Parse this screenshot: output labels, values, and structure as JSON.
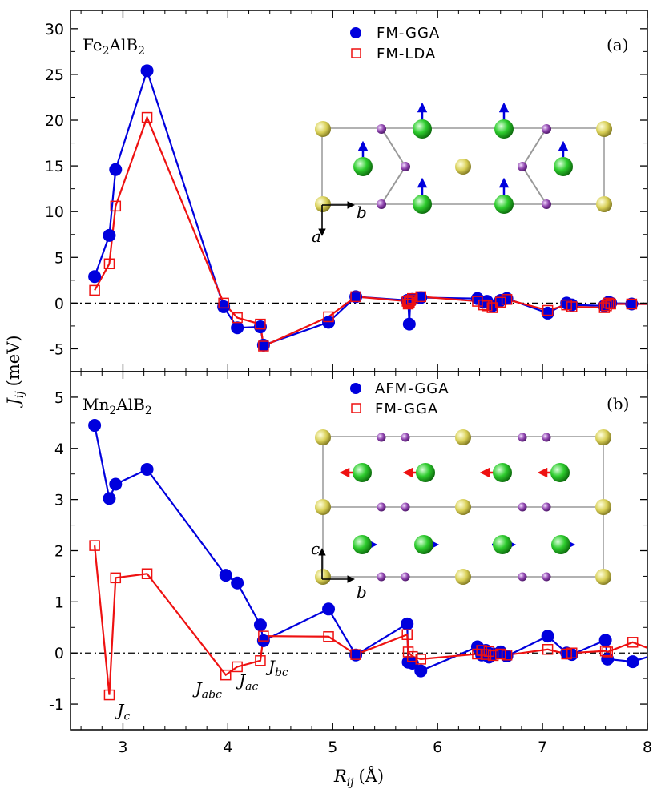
{
  "chart_data": [
    {
      "type": "line",
      "panel": "(a)",
      "compound": "Fe₂AlB₂",
      "xlim": [
        2.5,
        8
      ],
      "ylim": [
        -7.5,
        32
      ],
      "yticks": [
        -5,
        0,
        5,
        10,
        15,
        20,
        25,
        30
      ],
      "series": [
        {
          "name": "FM-GGA",
          "color": "#0000dd",
          "marker": "circle",
          "x": [
            2.73,
            2.87,
            2.93,
            3.23,
            3.96,
            4.09,
            4.31,
            4.34,
            4.96,
            5.22,
            5.71,
            5.72,
            5.73,
            5.74,
            5.76,
            5.84,
            6.38,
            6.44,
            6.47,
            6.52,
            6.6,
            6.66,
            7.05,
            7.23,
            7.28,
            7.59,
            7.61,
            7.63,
            7.65,
            7.85,
            8.0
          ],
          "y": [
            2.9,
            7.4,
            14.6,
            25.4,
            -0.4,
            -2.7,
            -2.6,
            -4.6,
            -2.1,
            0.7,
            0.3,
            0.1,
            -2.3,
            0.2,
            0.4,
            0.6,
            0.5,
            0.1,
            0.2,
            -0.3,
            0.3,
            0.5,
            -1.1,
            0.0,
            -0.2,
            -0.3,
            -0.1,
            0.1,
            0.0,
            -0.1,
            -0.1
          ]
        },
        {
          "name": "FM-LDA",
          "color": "#ee1111",
          "marker": "open-square",
          "x": [
            2.73,
            2.87,
            2.93,
            3.23,
            3.96,
            4.09,
            4.31,
            4.34,
            4.96,
            5.22,
            5.71,
            5.72,
            5.73,
            5.74,
            5.76,
            5.84,
            6.38,
            6.44,
            6.47,
            6.52,
            6.6,
            6.66,
            7.05,
            7.23,
            7.28,
            7.59,
            7.61,
            7.63,
            7.65,
            7.85,
            8.0
          ],
          "y": [
            1.4,
            4.3,
            10.6,
            20.3,
            0.0,
            -1.6,
            -2.3,
            -4.7,
            -1.5,
            0.7,
            0.2,
            -0.1,
            0.1,
            0.3,
            0.5,
            0.7,
            0.2,
            -0.2,
            -0.3,
            -0.5,
            0.1,
            0.4,
            -0.8,
            -0.2,
            -0.4,
            -0.5,
            -0.3,
            0.0,
            -0.1,
            -0.1,
            -0.1
          ]
        }
      ],
      "legend": [
        "FM-GGA",
        "FM-LDA"
      ],
      "inset_axes": [
        "a",
        "b"
      ]
    },
    {
      "type": "line",
      "panel": "(b)",
      "compound": "Mn₂AlB₂",
      "xlim": [
        2.5,
        8
      ],
      "ylim": [
        -1.5,
        5.5
      ],
      "yticks": [
        -1,
        0,
        1,
        2,
        3,
        4,
        5
      ],
      "series": [
        {
          "name": "AFM-GGA",
          "color": "#0000dd",
          "marker": "circle",
          "x": [
            2.73,
            2.87,
            2.93,
            3.23,
            3.98,
            4.09,
            4.31,
            4.34,
            4.96,
            5.22,
            5.71,
            5.72,
            5.76,
            5.84,
            6.38,
            6.42,
            6.46,
            6.49,
            6.53,
            6.6,
            6.66,
            7.05,
            7.23,
            7.28,
            7.6,
            7.62,
            7.86,
            8.0
          ],
          "y": [
            4.45,
            3.02,
            3.3,
            3.59,
            1.52,
            1.37,
            0.55,
            0.24,
            0.86,
            -0.04,
            0.57,
            -0.18,
            -0.2,
            -0.35,
            0.12,
            -0.04,
            0.05,
            -0.08,
            -0.02,
            0.02,
            -0.06,
            0.33,
            0.0,
            -0.03,
            0.25,
            -0.12,
            -0.17,
            -0.08
          ]
        },
        {
          "name": "FM-GGA",
          "color": "#ee1111",
          "marker": "open-square",
          "x": [
            2.73,
            2.87,
            2.93,
            3.23,
            3.98,
            4.09,
            4.31,
            4.34,
            4.96,
            5.22,
            5.71,
            5.72,
            5.76,
            5.84,
            6.38,
            6.42,
            6.46,
            6.49,
            6.53,
            6.6,
            6.66,
            7.05,
            7.23,
            7.28,
            7.6,
            7.62,
            7.86,
            8.0
          ],
          "y": [
            2.1,
            -0.82,
            1.47,
            1.55,
            -0.43,
            -0.27,
            -0.15,
            0.33,
            0.32,
            -0.03,
            0.36,
            0.02,
            -0.07,
            -0.12,
            -0.02,
            0.05,
            -0.03,
            0.03,
            -0.05,
            -0.02,
            -0.04,
            0.07,
            -0.02,
            0.0,
            0.04,
            0.02,
            0.21,
            0.1
          ]
        }
      ],
      "legend": [
        "AFM-GGA",
        "FM-GGA"
      ],
      "annotations": [
        {
          "base": "J",
          "sub": "c",
          "x": 2.87,
          "y": -0.82
        },
        {
          "base": "J",
          "sub": "abc",
          "x": 3.98,
          "y": -0.43
        },
        {
          "base": "J",
          "sub": "ac",
          "x": 4.09,
          "y": -0.27
        },
        {
          "base": "J",
          "sub": "bc",
          "x": 4.31,
          "y": -0.15
        }
      ],
      "inset_axes": [
        "c",
        "b"
      ]
    }
  ],
  "xlabel": {
    "base": "R",
    "sub": "ij",
    "unit": "(Å)"
  },
  "ylabel": {
    "base": "J",
    "sub": "ij",
    "unit": "(meV)"
  },
  "xticks": [
    3,
    4,
    5,
    6,
    7,
    8
  ],
  "colors": {
    "gga": "#0000dd",
    "lda": "#ee1111",
    "al": "#d8cf56",
    "fe": "#22bb22",
    "b": "#8e44ad"
  }
}
